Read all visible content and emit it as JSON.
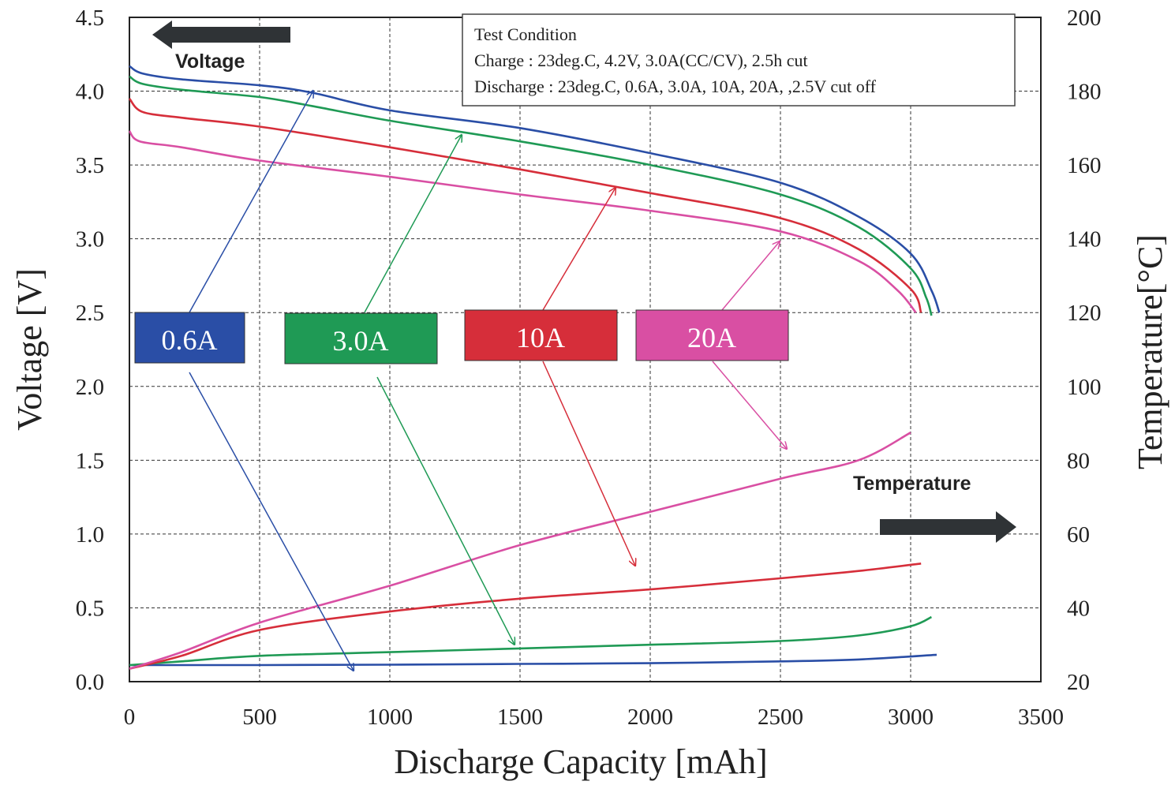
{
  "chart_data": {
    "type": "line",
    "xlabel": "Discharge Capacity [mAh]",
    "ylabel_left": "Voltage [V]",
    "ylabel_right": "Temperature[°C]",
    "xlim": [
      0,
      3500
    ],
    "ylim_left": [
      0,
      4.5
    ],
    "ylim_right": [
      20,
      200
    ],
    "x_ticks": [
      "0",
      "500",
      "1000",
      "1500",
      "2000",
      "2500",
      "3000",
      "3500"
    ],
    "y_left_ticks": [
      "0.0",
      "0.5",
      "1.0",
      "1.5",
      "2.0",
      "2.5",
      "3.0",
      "3.5",
      "4.0",
      "4.5"
    ],
    "y_right_ticks": [
      "20",
      "40",
      "60",
      "80",
      "100",
      "120",
      "140",
      "160",
      "180",
      "200"
    ],
    "grid": true,
    "voltage_arrow_label": "Voltage",
    "temperature_arrow_label": "Temperature",
    "test_condition": {
      "title": "Test Condition",
      "charge": "Charge : 23deg.C, 4.2V, 3.0A(CC/CV), 2.5h cut",
      "discharge": "Discharge : 23deg.C, 0.6A, 3.0A, 10A, 20A, ,2.5V cut off"
    },
    "series": [
      {
        "name": "0.6A",
        "color": "#2a4ea6",
        "voltage": [
          [
            0,
            4.17
          ],
          [
            50,
            4.12
          ],
          [
            200,
            4.08
          ],
          [
            500,
            4.04
          ],
          [
            700,
            3.99
          ],
          [
            1000,
            3.87
          ],
          [
            1500,
            3.75
          ],
          [
            2000,
            3.58
          ],
          [
            2500,
            3.38
          ],
          [
            2800,
            3.15
          ],
          [
            3000,
            2.9
          ],
          [
            3080,
            2.65
          ],
          [
            3110,
            2.5
          ]
        ],
        "temperature": [
          [
            0,
            24.5
          ],
          [
            500,
            24.5
          ],
          [
            1000,
            24.6
          ],
          [
            1500,
            24.8
          ],
          [
            2000,
            25
          ],
          [
            2500,
            25.5
          ],
          [
            2800,
            26
          ],
          [
            3100,
            27.3
          ]
        ]
      },
      {
        "name": "3.0A",
        "color": "#1f9a55",
        "voltage": [
          [
            0,
            4.1
          ],
          [
            50,
            4.05
          ],
          [
            200,
            4.01
          ],
          [
            500,
            3.96
          ],
          [
            700,
            3.9
          ],
          [
            1000,
            3.8
          ],
          [
            1500,
            3.66
          ],
          [
            2000,
            3.5
          ],
          [
            2500,
            3.3
          ],
          [
            2800,
            3.08
          ],
          [
            3000,
            2.8
          ],
          [
            3060,
            2.6
          ],
          [
            3080,
            2.48
          ]
        ],
        "temperature": [
          [
            0,
            24.5
          ],
          [
            200,
            25.5
          ],
          [
            500,
            27
          ],
          [
            1000,
            28
          ],
          [
            1500,
            29
          ],
          [
            2000,
            30
          ],
          [
            2500,
            31
          ],
          [
            2800,
            32.5
          ],
          [
            3000,
            35
          ],
          [
            3080,
            37.5
          ]
        ]
      },
      {
        "name": "10A",
        "color": "#d62e3a",
        "voltage": [
          [
            0,
            3.95
          ],
          [
            50,
            3.86
          ],
          [
            200,
            3.82
          ],
          [
            500,
            3.76
          ],
          [
            1000,
            3.62
          ],
          [
            1500,
            3.47
          ],
          [
            2000,
            3.31
          ],
          [
            2500,
            3.14
          ],
          [
            2800,
            2.93
          ],
          [
            3000,
            2.66
          ],
          [
            3040,
            2.5
          ]
        ],
        "temperature": [
          [
            0,
            23.5
          ],
          [
            200,
            27
          ],
          [
            500,
            34
          ],
          [
            1000,
            39
          ],
          [
            1500,
            42.5
          ],
          [
            2000,
            45
          ],
          [
            2500,
            48
          ],
          [
            2800,
            50
          ],
          [
            3040,
            52
          ]
        ]
      },
      {
        "name": "20A",
        "color": "#d94fa3",
        "voltage": [
          [
            0,
            3.73
          ],
          [
            40,
            3.66
          ],
          [
            200,
            3.62
          ],
          [
            500,
            3.53
          ],
          [
            1000,
            3.42
          ],
          [
            1500,
            3.3
          ],
          [
            2000,
            3.19
          ],
          [
            2500,
            3.05
          ],
          [
            2800,
            2.85
          ],
          [
            2950,
            2.65
          ],
          [
            3020,
            2.5
          ]
        ],
        "temperature": [
          [
            0,
            23.5
          ],
          [
            200,
            28
          ],
          [
            500,
            36
          ],
          [
            1000,
            46
          ],
          [
            1500,
            57
          ],
          [
            2000,
            66
          ],
          [
            2500,
            75
          ],
          [
            2800,
            80
          ],
          [
            3000,
            87.5
          ]
        ]
      }
    ]
  }
}
